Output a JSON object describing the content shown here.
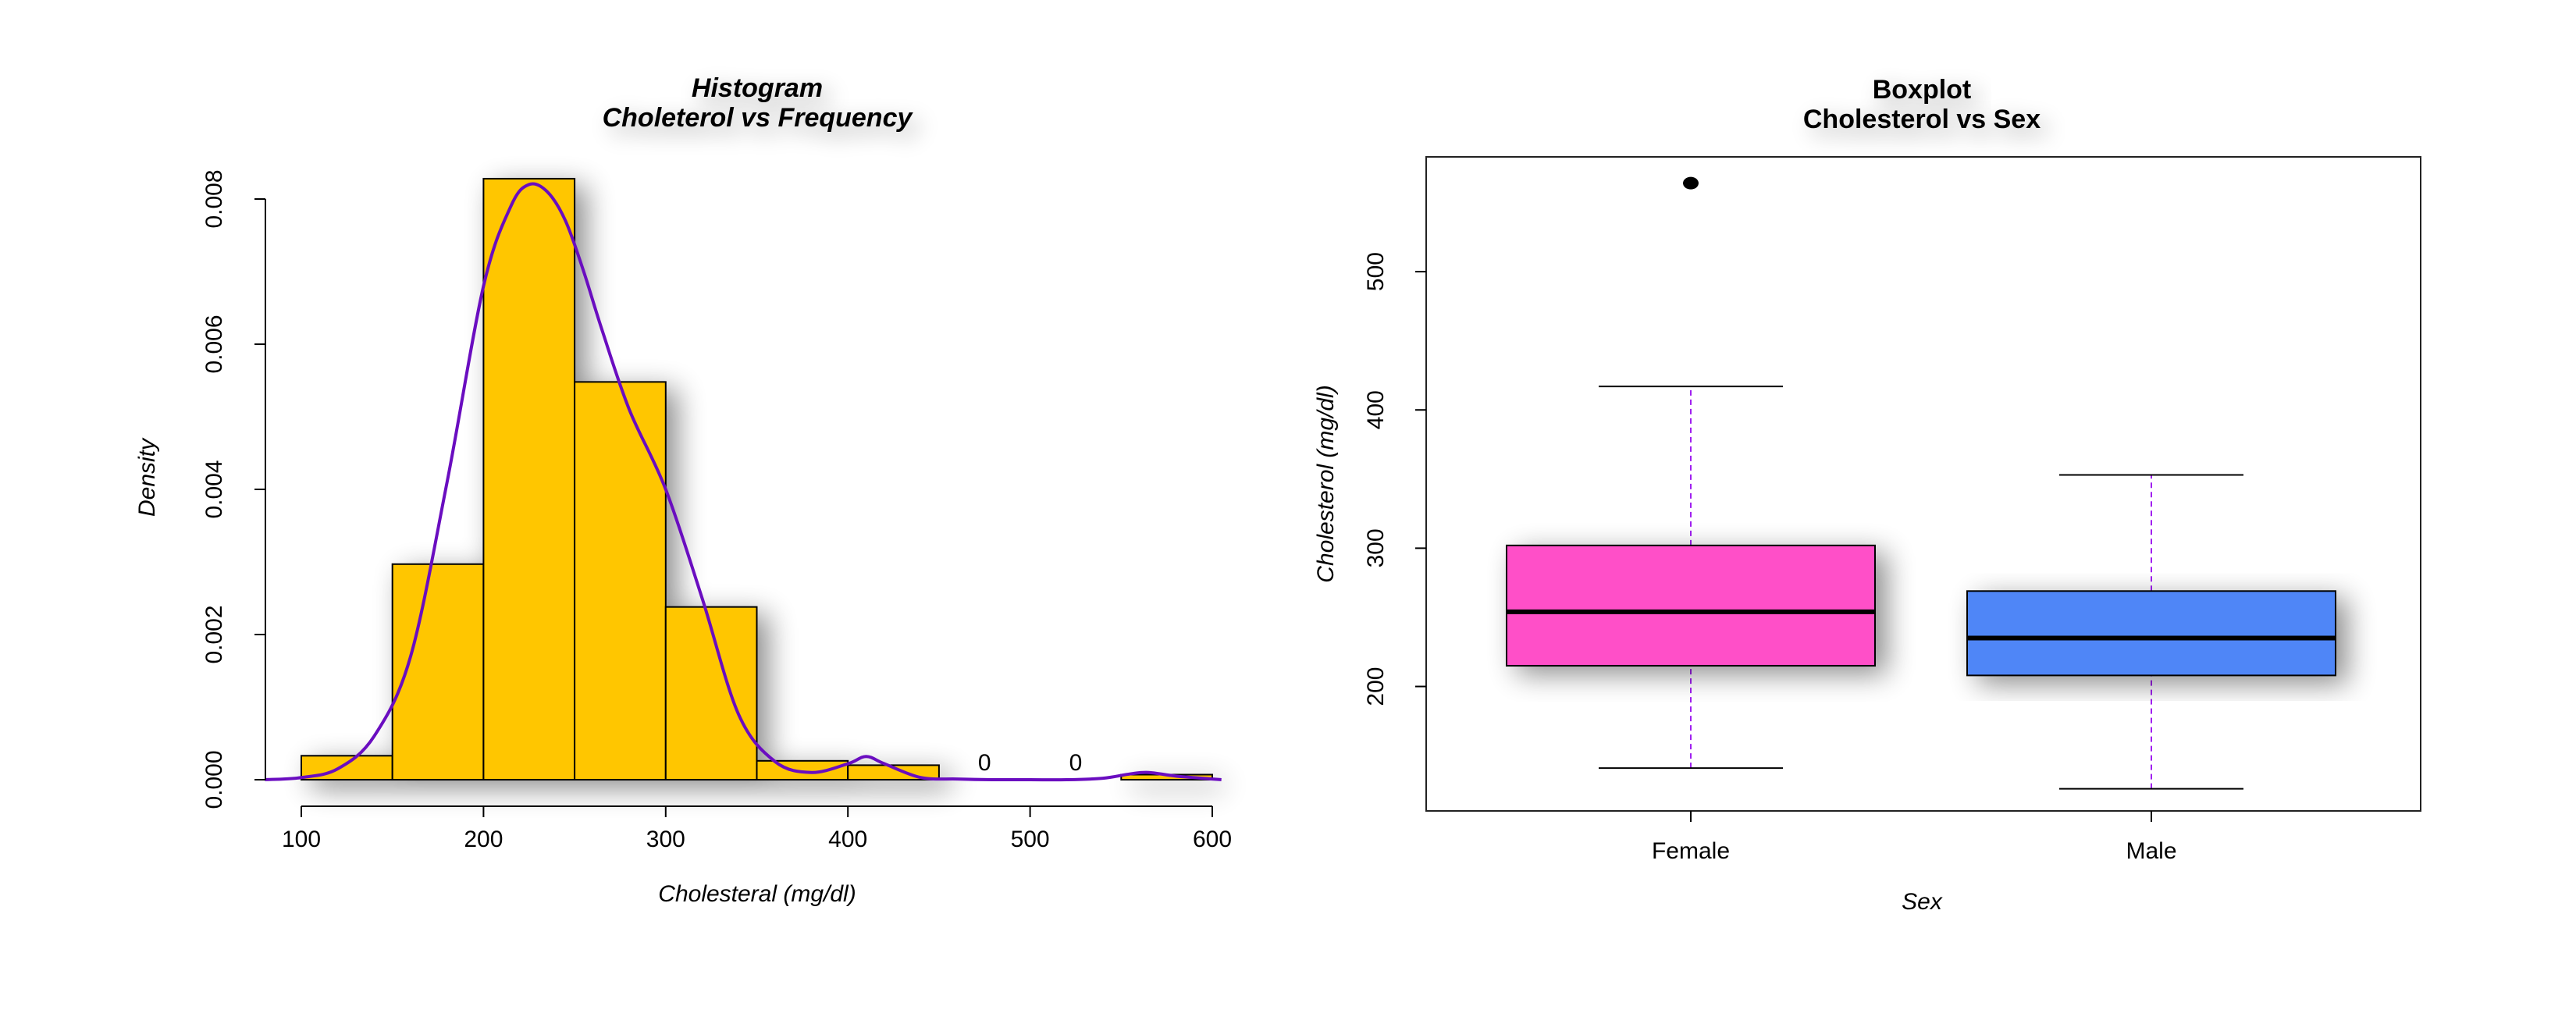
{
  "chart_data": [
    {
      "type": "bar",
      "subtype": "histogram",
      "title": "Histogram",
      "subtitle": "Choleterol vs Frequency",
      "xlabel": "Cholesteral (mg/dl)",
      "ylabel": "Density",
      "xlim": [
        100,
        600
      ],
      "ylim": [
        0,
        0.008
      ],
      "x_ticks": [
        "100",
        "200",
        "300",
        "400",
        "500",
        "600"
      ],
      "y_ticks": [
        "0.000",
        "0.002",
        "0.004",
        "0.006",
        "0.008"
      ],
      "bins": [
        {
          "from": 100,
          "to": 150,
          "density": 0.00033
        },
        {
          "from": 150,
          "to": 200,
          "density": 0.00297
        },
        {
          "from": 200,
          "to": 250,
          "density": 0.00828
        },
        {
          "from": 250,
          "to": 300,
          "density": 0.00548
        },
        {
          "from": 300,
          "to": 350,
          "density": 0.00238
        },
        {
          "from": 350,
          "to": 400,
          "density": 0.00026
        },
        {
          "from": 400,
          "to": 450,
          "density": 0.0002
        },
        {
          "from": 450,
          "to": 500,
          "density": 0
        },
        {
          "from": 500,
          "to": 550,
          "density": 0
        },
        {
          "from": 550,
          "to": 600,
          "density": 7e-05
        }
      ],
      "bar_labels": [
        {
          "x": 475,
          "text": "0"
        },
        {
          "x": 525,
          "text": "0"
        }
      ],
      "density_curve": {
        "x": [
          80,
          100,
          120,
          140,
          160,
          180,
          200,
          215,
          225,
          235,
          245,
          255,
          265,
          280,
          300,
          320,
          340,
          360,
          380,
          400,
          410,
          420,
          440,
          460,
          480,
          500,
          520,
          540,
          555,
          565,
          580,
          600,
          605
        ],
        "y": [
          0,
          3e-05,
          0.00015,
          0.0006,
          0.0017,
          0.0041,
          0.0068,
          0.0079,
          0.0082,
          0.0081,
          0.0077,
          0.007,
          0.0062,
          0.0051,
          0.004,
          0.0025,
          0.0009,
          0.00025,
          0.0001,
          0.00022,
          0.00032,
          0.00022,
          3e-05,
          1e-05,
          0,
          0,
          0,
          2e-05,
          8e-05,
          0.0001,
          5e-05,
          1e-05,
          0
        ]
      },
      "colors": {
        "bar": "#FFC600",
        "curve": "#6A0DC0"
      }
    },
    {
      "type": "boxplot",
      "title": "Boxplot",
      "subtitle": "Cholesterol vs Sex",
      "xlabel": "Sex",
      "ylabel": "Cholesterol (mg/dl)",
      "ylim": [
        110,
        583
      ],
      "y_ticks": [
        "200",
        "300",
        "400",
        "500"
      ],
      "categories": [
        "Female",
        "Male"
      ],
      "boxes": [
        {
          "name": "Female",
          "whisker_low": 141,
          "q1": 215,
          "median": 254,
          "q3": 302,
          "whisker_high": 417,
          "outliers": [
            564
          ],
          "color": "#FF50C8"
        },
        {
          "name": "Male",
          "whisker_low": 126,
          "q1": 208,
          "median": 235,
          "q3": 269,
          "whisker_high": 353,
          "outliers": [],
          "color": "#4F86F7"
        }
      ],
      "colors": {
        "whisker": "#A020F0"
      }
    }
  ]
}
